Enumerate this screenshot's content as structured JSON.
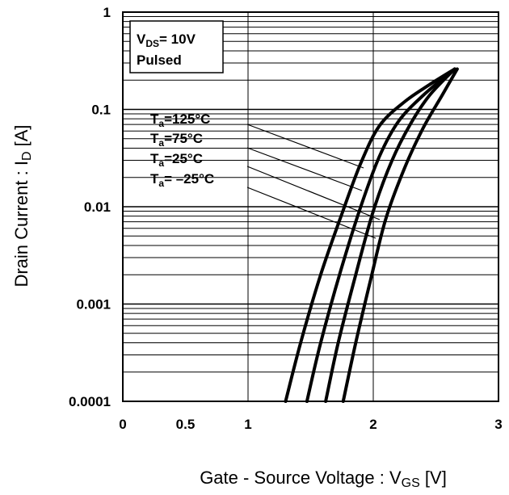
{
  "chart_data": {
    "type": "line",
    "title": "",
    "xlabel": "Gate - Source Voltage : V",
    "xlabel_sub": "GS",
    "xlabel_unit": " [V]",
    "ylabel": "Drain Current : I",
    "ylabel_sub": "D",
    "ylabel_unit": " [A]",
    "xlim": [
      0,
      3
    ],
    "ylim": [
      0.0001,
      1
    ],
    "yscale": "log",
    "grid": true,
    "x_ticks": [
      "0",
      "0.5",
      "1",
      "2",
      "3"
    ],
    "x_tick_values": [
      0,
      0.5,
      1,
      2,
      3
    ],
    "y_ticks": [
      "1",
      "0.1",
      "0.01",
      "0.001",
      "0.0001"
    ],
    "y_tick_values": [
      1,
      0.1,
      0.01,
      0.001,
      0.0001
    ],
    "condition": {
      "vds_prefix": "V",
      "vds_sub": "DS",
      "vds_value": "= 10V",
      "mode": "Pulsed"
    },
    "series": [
      {
        "name": "Ta=125°C",
        "label_prefix": "T",
        "label_sub": "a",
        "label_rest": "=125°C",
        "x": [
          1.3,
          1.42,
          1.58,
          1.75,
          1.9,
          2.05,
          2.25,
          2.45,
          2.65
        ],
        "y": [
          0.0001,
          0.0004,
          0.002,
          0.0085,
          0.028,
          0.068,
          0.12,
          0.18,
          0.26
        ]
      },
      {
        "name": "Ta=75°C",
        "label_prefix": "T",
        "label_sub": "a",
        "label_rest": "=75°C",
        "x": [
          1.47,
          1.58,
          1.74,
          1.9,
          2.05,
          2.2,
          2.4,
          2.65
        ],
        "y": [
          0.0001,
          0.0004,
          0.0022,
          0.01,
          0.033,
          0.075,
          0.14,
          0.26
        ]
      },
      {
        "name": "Ta=25°C",
        "label_prefix": "T",
        "label_sub": "a",
        "label_rest": "=25°C",
        "x": [
          1.62,
          1.72,
          1.86,
          2.0,
          2.15,
          2.3,
          2.45,
          2.65
        ],
        "y": [
          0.0001,
          0.0004,
          0.002,
          0.009,
          0.03,
          0.072,
          0.14,
          0.26
        ]
      },
      {
        "name": "Ta= –25°C",
        "label_prefix": "T",
        "label_sub": "a",
        "label_rest": "= –25°C",
        "x": [
          1.76,
          1.86,
          1.98,
          2.1,
          2.25,
          2.4,
          2.55,
          2.67
        ],
        "y": [
          0.0001,
          0.0004,
          0.0018,
          0.0075,
          0.025,
          0.065,
          0.14,
          0.26
        ]
      }
    ]
  }
}
